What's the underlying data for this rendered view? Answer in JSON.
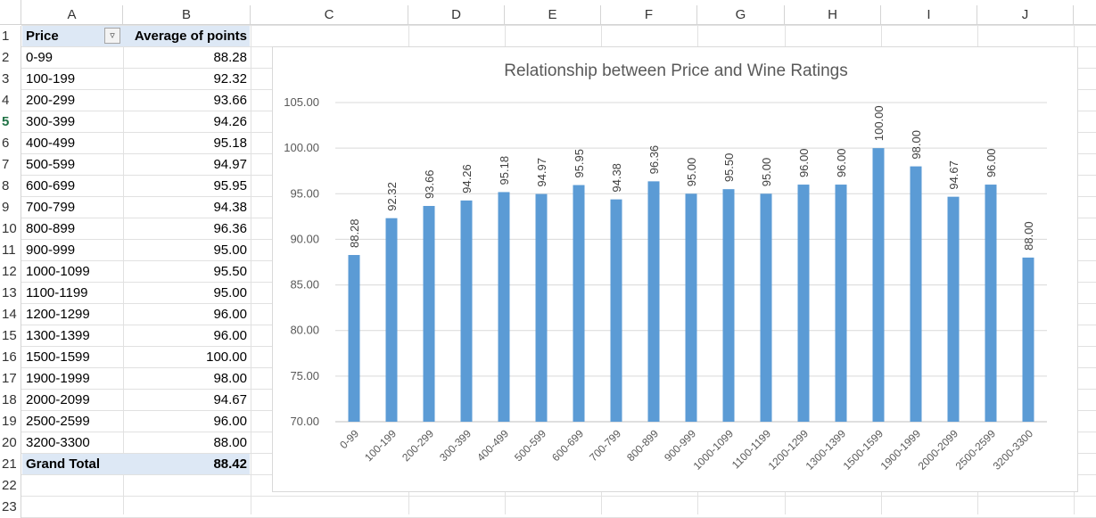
{
  "columns": [
    "A",
    "B",
    "C",
    "D",
    "E",
    "F",
    "G",
    "H",
    "I",
    "J"
  ],
  "rows": [
    "1",
    "2",
    "3",
    "4",
    "5",
    "6",
    "7",
    "8",
    "9",
    "10",
    "11",
    "12",
    "13",
    "14",
    "15",
    "16",
    "17",
    "18",
    "19",
    "20",
    "21",
    "22",
    "23"
  ],
  "active_row": "5",
  "pivot": {
    "header": {
      "col_a": "Price",
      "col_b": "Average of points"
    },
    "filter_icon": "filter-dropdown-icon",
    "rows": [
      {
        "a": "0-99",
        "b": "88.28"
      },
      {
        "a": "100-199",
        "b": "92.32"
      },
      {
        "a": "200-299",
        "b": "93.66"
      },
      {
        "a": "300-399",
        "b": "94.26"
      },
      {
        "a": "400-499",
        "b": "95.18"
      },
      {
        "a": "500-599",
        "b": "94.97"
      },
      {
        "a": "600-699",
        "b": "95.95"
      },
      {
        "a": "700-799",
        "b": "94.38"
      },
      {
        "a": "800-899",
        "b": "96.36"
      },
      {
        "a": "900-999",
        "b": "95.00"
      },
      {
        "a": "1000-1099",
        "b": "95.50"
      },
      {
        "a": "1100-1199",
        "b": "95.00"
      },
      {
        "a": "1200-1299",
        "b": "96.00"
      },
      {
        "a": "1300-1399",
        "b": "96.00"
      },
      {
        "a": "1500-1599",
        "b": "100.00"
      },
      {
        "a": "1900-1999",
        "b": "98.00"
      },
      {
        "a": "2000-2099",
        "b": "94.67"
      },
      {
        "a": "2500-2599",
        "b": "96.00"
      },
      {
        "a": "3200-3300",
        "b": "88.00"
      }
    ],
    "total": {
      "a": "Grand Total",
      "b": "88.42"
    }
  },
  "colors": {
    "bar": "#5b9bd5",
    "header_fill": "#dde8f5",
    "active_row": "#217346"
  },
  "chart_data": {
    "type": "bar",
    "title": "Relationship between Price and Wine Ratings",
    "categories": [
      "0-99",
      "100-199",
      "200-299",
      "300-399",
      "400-499",
      "500-599",
      "600-699",
      "700-799",
      "800-899",
      "900-999",
      "1000-1099",
      "1100-1199",
      "1200-1299",
      "1300-1399",
      "1500-1599",
      "1900-1999",
      "2000-2099",
      "2500-2599",
      "3200-3300"
    ],
    "values": [
      88.28,
      92.32,
      93.66,
      94.26,
      95.18,
      94.97,
      95.95,
      94.38,
      96.36,
      95.0,
      95.5,
      95.0,
      96.0,
      96.0,
      100.0,
      98.0,
      94.67,
      96.0,
      88.0
    ],
    "data_labels": [
      "88.28",
      "92.32",
      "93.66",
      "94.26",
      "95.18",
      "94.97",
      "95.95",
      "94.38",
      "96.36",
      "95.00",
      "95.50",
      "95.00",
      "96.00",
      "96.00",
      "100.00",
      "98.00",
      "94.67",
      "96.00",
      "88.00"
    ],
    "y_ticks": [
      "70.00",
      "75.00",
      "80.00",
      "85.00",
      "90.00",
      "95.00",
      "100.00",
      "105.00"
    ],
    "ylim": [
      70,
      105
    ],
    "grid": true,
    "legend": "none"
  }
}
